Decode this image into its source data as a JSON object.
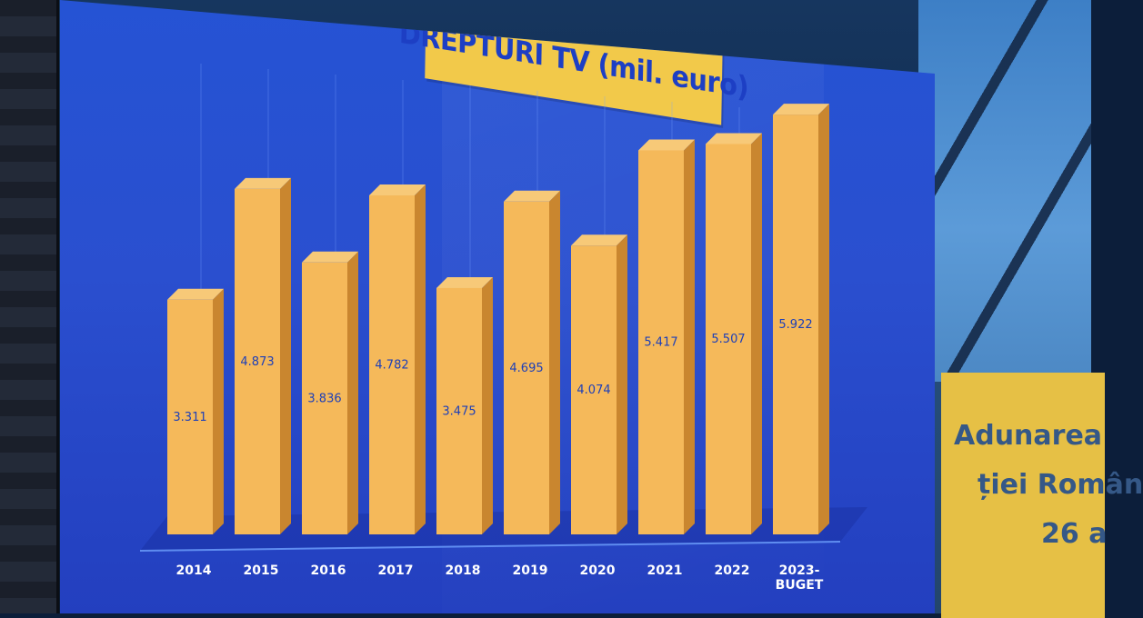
{
  "chart_data": {
    "type": "bar",
    "title": "DREPTURI TV (mil. euro)",
    "categories": [
      "2014",
      "2015",
      "2016",
      "2017",
      "2018",
      "2019",
      "2020",
      "2021",
      "2022",
      "2023-BUGET"
    ],
    "category_lines": [
      [
        "2014"
      ],
      [
        "2015"
      ],
      [
        "2016"
      ],
      [
        "2017"
      ],
      [
        "2018"
      ],
      [
        "2019"
      ],
      [
        "2020"
      ],
      [
        "2021"
      ],
      [
        "2022"
      ],
      [
        "2023-",
        "BUGET"
      ]
    ],
    "values": [
      3311,
      4873,
      3836,
      4782,
      3475,
      4695,
      4074,
      5417,
      5507,
      5922
    ],
    "value_labels": [
      "3.311",
      "4.873",
      "3.836",
      "4.782",
      "3.475",
      "4.695",
      "4.074",
      "5.417",
      "5.507",
      "5.922"
    ],
    "xlabel": "",
    "ylabel": "",
    "ylim": [
      0,
      6000
    ],
    "bar_color": "#f5b95a",
    "background_color": "#2a4fd0"
  },
  "background_sign": {
    "line1": "Adunarea",
    "line2": "ției Român",
    "line3": "26 a"
  }
}
